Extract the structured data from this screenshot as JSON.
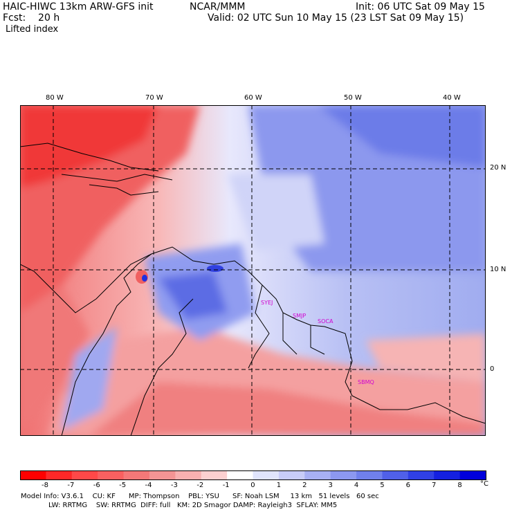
{
  "header": {
    "model_title": "HAIC-HIWC 13km ARW-GFS init",
    "center": "NCAR/MMM",
    "init": "Init: 06 UTC Sat 09 May 15",
    "fcst": "Fcst:    20 h",
    "valid": "Valid: 02 UTC Sun 10 May 15 (23 LST Sat 09 May 15)",
    "field": "Lifted index"
  },
  "map": {
    "lon_labels": [
      "80 W",
      "70 W",
      "60 W",
      "50 W",
      "40 W"
    ],
    "lat_labels": [
      "20 N",
      "10 N",
      "0"
    ],
    "stations": [
      "SYEJ",
      "SMJP",
      "SOCA",
      "SBMQ"
    ],
    "colors": {
      "strong_neg": "#ff3030",
      "neg": "#f07070",
      "weak_neg": "#f8b0b0",
      "neutral": "#ffffff",
      "weak_pos": "#c8d0f8",
      "pos": "#8898ee",
      "strong_pos": "#3040e0"
    }
  },
  "colorbar": {
    "labels": [
      "-8",
      "-7",
      "-6",
      "-5",
      "-4",
      "-3",
      "-2",
      "-1",
      "0",
      "1",
      "2",
      "3",
      "4",
      "5",
      "6",
      "7",
      "8"
    ],
    "unit": "°C",
    "colors": [
      "#ff0000",
      "#ff2828",
      "#ff4848",
      "#f86060",
      "#f47878",
      "#f49494",
      "#f8b0b0",
      "#fcd0d0",
      "#ffffff",
      "#e0e4fc",
      "#c8ccf8",
      "#a8b0f4",
      "#8c98f0",
      "#7080ec",
      "#5060e8",
      "#3040e4",
      "#1420e0",
      "#0000dc"
    ]
  },
  "footer": {
    "line1": "Model Info: V3.6.1    CU: KF      MP: Thompson    PBL: YSU      SF: Noah LSM     13 km   51 levels   60 sec",
    "line2": "LW: RRTMG    SW: RRTMG  DIFF: full   KM: 2D Smagor DAMP: Rayleigh3  SFLAY: MM5"
  }
}
